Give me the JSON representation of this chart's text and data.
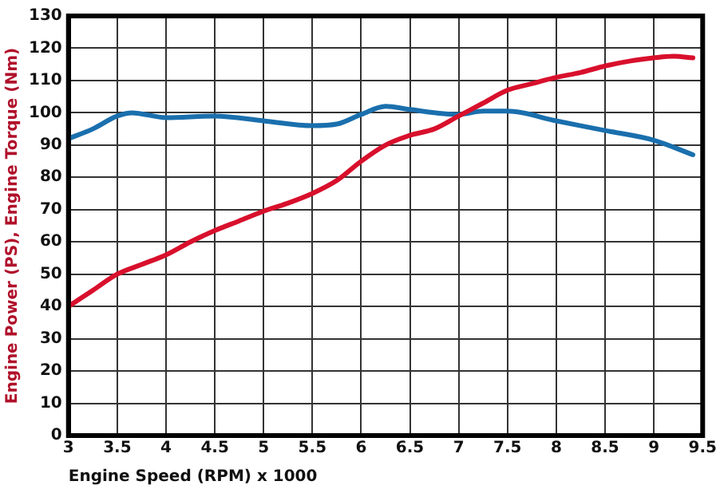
{
  "chart_data": {
    "type": "line",
    "xlabel": "Engine Speed (RPM) x 1000",
    "ylabel": "Engine Power (PS), Engine Torque (Nm)",
    "xlim": [
      3,
      9.5
    ],
    "xticks": [
      3,
      3.5,
      4,
      4.5,
      5,
      5.5,
      6,
      6.5,
      7,
      7.5,
      8,
      8.5,
      9,
      9.5
    ],
    "ylim": [
      0,
      130
    ],
    "yticks": [
      0,
      10,
      20,
      30,
      40,
      50,
      60,
      70,
      80,
      90,
      100,
      110,
      120,
      130
    ],
    "grid": true,
    "legend": false,
    "marker": "none",
    "line_style": "solid",
    "series": [
      {
        "color": "#d8102c",
        "x": [
          3,
          3.25,
          3.5,
          3.75,
          4,
          4.25,
          4.5,
          4.75,
          5,
          5.25,
          5.5,
          5.75,
          6,
          6.25,
          6.5,
          6.75,
          7,
          7.25,
          7.5,
          7.75,
          8,
          8.25,
          8.5,
          8.75,
          9,
          9.2,
          9.4
        ],
        "values": [
          40,
          45,
          50,
          53,
          56,
          60,
          63.5,
          66.5,
          69.5,
          72,
          75,
          79,
          85,
          90,
          93,
          95,
          99,
          103,
          107,
          109,
          111,
          112.5,
          114.5,
          116,
          117,
          117.5,
          117
        ]
      },
      {
        "color": "#1a6fad",
        "x": [
          3,
          3.25,
          3.5,
          3.65,
          4,
          4.5,
          5,
          5.5,
          5.75,
          6,
          6.25,
          6.5,
          7,
          7.25,
          7.5,
          8,
          8.5,
          9,
          9.4
        ],
        "values": [
          92,
          95,
          99,
          100,
          98.5,
          99,
          97.5,
          96,
          96.5,
          99.5,
          102,
          101,
          99.5,
          100.5,
          100.5,
          97.5,
          94.5,
          91.5,
          87
        ]
      }
    ]
  }
}
